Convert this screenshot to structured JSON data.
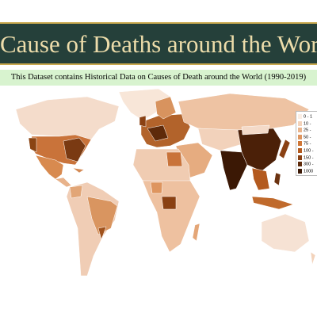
{
  "header": {
    "title": "Cause of Deaths around the World",
    "subtitle": "This Dataset contains Historical Data on Causes of Death around the World (1990-2019)"
  },
  "legend": {
    "items": [
      {
        "label": "0 - 1",
        "color": "#fbeee4"
      },
      {
        "label": "10 -",
        "color": "#f3d3bb"
      },
      {
        "label": "25 -",
        "color": "#e9b48c"
      },
      {
        "label": "50 -",
        "color": "#de955f"
      },
      {
        "label": "75 -",
        "color": "#cf7636"
      },
      {
        "label": "100 -",
        "color": "#b35a1f"
      },
      {
        "label": "150 -",
        "color": "#8a4113"
      },
      {
        "label": "300 -",
        "color": "#5e2a0a"
      },
      {
        "label": "1000",
        "color": "#3b1805"
      }
    ]
  }
}
